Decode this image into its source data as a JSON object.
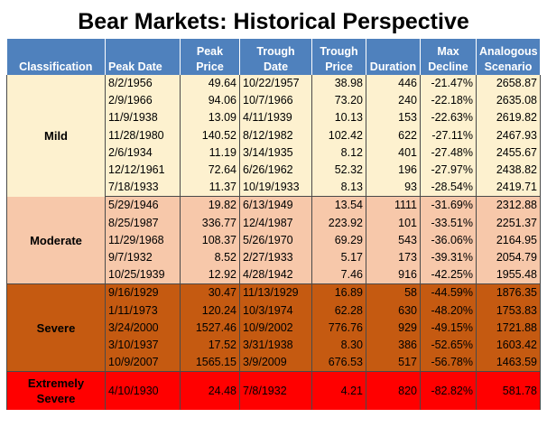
{
  "title": "Bear Markets:  Historical Perspective",
  "headers": {
    "classification": "Classification",
    "peak_date": "Peak Date",
    "peak_price_1": "Peak",
    "peak_price_2": "Price",
    "trough_date_1": "Trough",
    "trough_date_2": "Date",
    "trough_price_1": "Trough",
    "trough_price_2": "Price",
    "duration": "Duration",
    "max_decline_1": "Max",
    "max_decline_2": "Decline",
    "analogous_1": "Analogous",
    "analogous_2": "Scenario"
  },
  "groups": [
    {
      "name": "Mild",
      "color": "#fdf1cf",
      "rows": [
        [
          "8/2/1956",
          "49.64",
          "10/22/1957",
          "38.98",
          "446",
          "-21.47%",
          "2658.87"
        ],
        [
          "2/9/1966",
          "94.06",
          "10/7/1966",
          "73.20",
          "240",
          "-22.18%",
          "2635.08"
        ],
        [
          "11/9/1938",
          "13.09",
          "4/11/1939",
          "10.13",
          "153",
          "-22.63%",
          "2619.82"
        ],
        [
          "11/28/1980",
          "140.52",
          "8/12/1982",
          "102.42",
          "622",
          "-27.11%",
          "2467.93"
        ],
        [
          "2/6/1934",
          "11.19",
          "3/14/1935",
          "8.12",
          "401",
          "-27.48%",
          "2455.67"
        ],
        [
          "12/12/1961",
          "72.64",
          "6/26/1962",
          "52.32",
          "196",
          "-27.97%",
          "2438.82"
        ],
        [
          "7/18/1933",
          "11.37",
          "10/19/1933",
          "8.13",
          "93",
          "-28.54%",
          "2419.71"
        ]
      ]
    },
    {
      "name": "Moderate",
      "color": "#f7c8aa",
      "rows": [
        [
          "5/29/1946",
          "19.82",
          "6/13/1949",
          "13.54",
          "1111",
          "-31.69%",
          "2312.88"
        ],
        [
          "8/25/1987",
          "336.77",
          "12/4/1987",
          "223.92",
          "101",
          "-33.51%",
          "2251.37"
        ],
        [
          "11/29/1968",
          "108.37",
          "5/26/1970",
          "69.29",
          "543",
          "-36.06%",
          "2164.95"
        ],
        [
          "9/7/1932",
          "8.52",
          "2/27/1933",
          "5.17",
          "173",
          "-39.31%",
          "2054.79"
        ],
        [
          "10/25/1939",
          "12.92",
          "4/28/1942",
          "7.46",
          "916",
          "-42.25%",
          "1955.48"
        ]
      ]
    },
    {
      "name": "Severe",
      "color": "#c55a11",
      "rows": [
        [
          "9/16/1929",
          "30.47",
          "11/13/1929",
          "16.89",
          "58",
          "-44.59%",
          "1876.35"
        ],
        [
          "1/11/1973",
          "120.24",
          "10/3/1974",
          "62.28",
          "630",
          "-48.20%",
          "1753.83"
        ],
        [
          "3/24/2000",
          "1527.46",
          "10/9/2002",
          "776.76",
          "929",
          "-49.15%",
          "1721.88"
        ],
        [
          "3/10/1937",
          "17.52",
          "3/31/1938",
          "8.30",
          "386",
          "-52.65%",
          "1603.42"
        ],
        [
          "10/9/2007",
          "1565.15",
          "3/9/2009",
          "676.53",
          "517",
          "-56.78%",
          "1463.59"
        ]
      ]
    },
    {
      "name_line1": "Extremely",
      "name_line2": "Severe",
      "color": "#ff0000",
      "rows": [
        [
          "4/10/1930",
          "24.48",
          "7/8/1932",
          "4.21",
          "820",
          "-82.82%",
          "581.78"
        ]
      ]
    }
  ]
}
